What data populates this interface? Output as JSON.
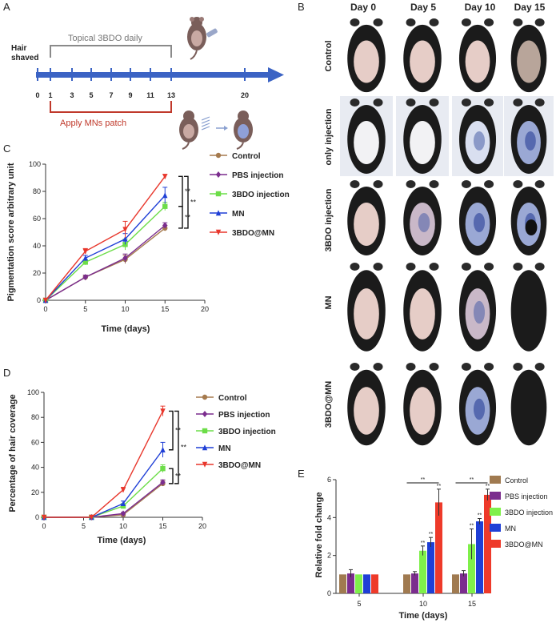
{
  "panel_labels": {
    "a": "A",
    "b": "B",
    "c": "C",
    "d": "D",
    "e": "E"
  },
  "timeline": {
    "hair_shaved_line1": "Hair",
    "hair_shaved_line2": "shaved",
    "topical_label": "Topical 3BDO daily",
    "mns_label": "Apply MNs patch",
    "ticks": [
      "0",
      "1",
      "3",
      "5",
      "7",
      "9",
      "11",
      "13",
      "20"
    ],
    "colors": {
      "arrow": "#3b63c4",
      "topical": "#8a8a8a",
      "mns": "#c0392b"
    }
  },
  "photo_grid": {
    "columns": [
      "Day 0",
      "Day 5",
      "Day 10",
      "Day 15"
    ],
    "rows": [
      "Control",
      "only injection",
      "3BDO  injection",
      "MN",
      "3BDO@MN"
    ],
    "palette": {
      "fur": "#1b1b1b",
      "skin": "#e6cdc7",
      "blue": "#4a5ea8"
    }
  },
  "chart_data": [
    {
      "panel": "C",
      "type": "line",
      "ylabel": "Pigmentation score arbitrary unit",
      "xlabel": "Time (days)",
      "xlim": [
        0,
        20
      ],
      "ylim": [
        0,
        100
      ],
      "xticks": [
        "0",
        "5",
        "10",
        "15",
        "20"
      ],
      "yticks": [
        "0",
        "20",
        "40",
        "60",
        "80",
        "100"
      ],
      "x": [
        0,
        5,
        10,
        15
      ],
      "legend_position": "right",
      "series": [
        {
          "name": "Control",
          "color": "#a57a4e",
          "marker": "circle",
          "values": [
            0,
            17,
            30,
            53
          ]
        },
        {
          "name": "PBS injection",
          "color": "#7b2d8e",
          "marker": "diamond",
          "values": [
            0,
            17,
            31,
            55
          ]
        },
        {
          "name": "3BDO injection",
          "color": "#6cdd48",
          "marker": "square",
          "values": [
            0,
            28,
            41,
            69
          ]
        },
        {
          "name": "MN",
          "color": "#1f3fd6",
          "marker": "triangle-up",
          "values": [
            0,
            31,
            45,
            77
          ]
        },
        {
          "name": "3BDO@MN",
          "color": "#e8372c",
          "marker": "triangle-down",
          "values": [
            0,
            36,
            52,
            91
          ]
        }
      ],
      "errors": [
        [
          0,
          1.5,
          3,
          2
        ],
        [
          0,
          1.5,
          3,
          2
        ],
        [
          0,
          2,
          4,
          3
        ],
        [
          0,
          2,
          4,
          6
        ],
        [
          0,
          2,
          6,
          1.5
        ]
      ],
      "annotations": [
        "**",
        "**",
        "**"
      ]
    },
    {
      "panel": "D",
      "type": "line",
      "ylabel": "Percentage of hair coverage",
      "xlabel": "Time (days)",
      "xlim": [
        0,
        20
      ],
      "ylim": [
        0,
        100
      ],
      "xticks": [
        "0",
        "5",
        "10",
        "15",
        "20"
      ],
      "yticks": [
        "0",
        "20",
        "40",
        "60",
        "80",
        "100"
      ],
      "x": [
        0,
        6,
        10,
        15
      ],
      "legend_position": "right",
      "series": [
        {
          "name": "Control",
          "color": "#a57a4e",
          "marker": "circle",
          "values": [
            0,
            0,
            2,
            27
          ]
        },
        {
          "name": "PBS injection",
          "color": "#7b2d8e",
          "marker": "diamond",
          "values": [
            0,
            0,
            3,
            28
          ]
        },
        {
          "name": "3BDO injection",
          "color": "#6cdd48",
          "marker": "square",
          "values": [
            0,
            0,
            9,
            39
          ]
        },
        {
          "name": "MN",
          "color": "#1f3fd6",
          "marker": "triangle-up",
          "values": [
            0,
            0,
            11,
            54
          ]
        },
        {
          "name": "3BDO@MN",
          "color": "#e8372c",
          "marker": "triangle-down",
          "values": [
            0,
            0,
            22,
            85
          ]
        }
      ],
      "errors": [
        [
          0,
          0,
          1,
          2
        ],
        [
          0,
          0,
          1,
          2
        ],
        [
          0,
          0,
          2,
          3
        ],
        [
          0,
          0,
          2,
          6
        ],
        [
          0,
          0,
          2,
          4
        ]
      ],
      "annotations": [
        "**",
        "**",
        "**"
      ]
    },
    {
      "panel": "E",
      "type": "bar",
      "ylabel": "Relative fold change",
      "xlabel": "Time (days)",
      "categories": [
        "5",
        "10",
        "15"
      ],
      "ylim": [
        0,
        6
      ],
      "yticks": [
        "0",
        "2",
        "4",
        "6"
      ],
      "legend_position": "right",
      "series": [
        {
          "name": "Control",
          "color": "#a07a50",
          "values": [
            1,
            1,
            1
          ]
        },
        {
          "name": "PBS injection",
          "color": "#7b2d8e",
          "values": [
            1.05,
            1.05,
            1.05
          ]
        },
        {
          "name": "3BDO injection",
          "color": "#7ff04a",
          "values": [
            1,
            2.25,
            2.6
          ]
        },
        {
          "name": "MN",
          "color": "#1f3fd6",
          "values": [
            1,
            2.7,
            3.8
          ]
        },
        {
          "name": "3BDO@MN",
          "color": "#ee3a2a",
          "values": [
            1,
            4.8,
            5.2
          ]
        }
      ],
      "errors": [
        [
          0,
          0,
          0
        ],
        [
          0.2,
          0.1,
          0.15
        ],
        [
          0,
          0.25,
          0.8
        ],
        [
          0,
          0.25,
          0.15
        ],
        [
          0,
          0.7,
          0.3
        ]
      ],
      "annotations": [
        "**",
        "**",
        "**",
        "**",
        "**",
        "**",
        "**"
      ]
    }
  ]
}
